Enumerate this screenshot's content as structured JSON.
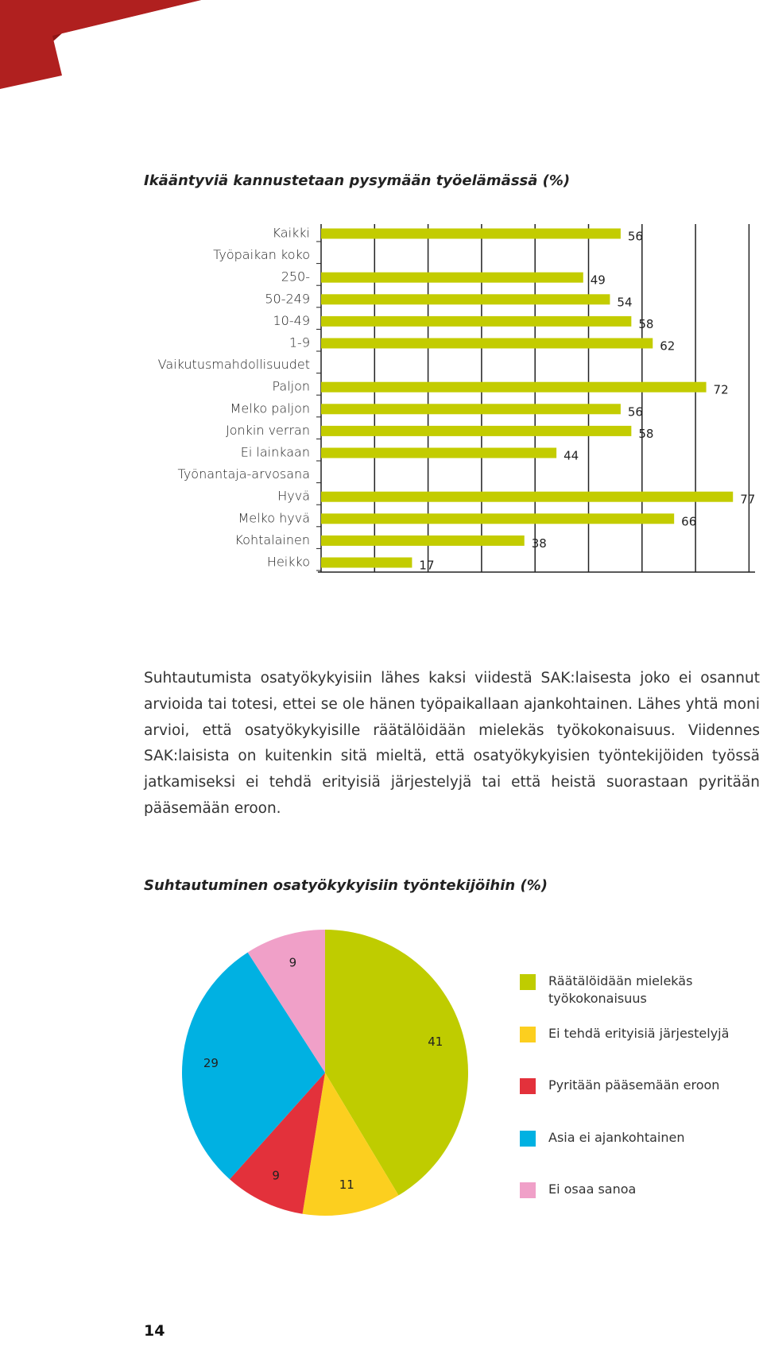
{
  "chart_data": [
    {
      "type": "bar",
      "orientation": "horizontal",
      "title": "Ikääntyviä kannustetaan pysymään työelämässä (%)",
      "categories": [
        "Kaikki",
        "Työpaikan koko",
        "250-",
        "50-249",
        "10-49",
        "1-9",
        "Vaikutusmahdollisuudet",
        "Paljon",
        "Melko paljon",
        "Jonkin verran",
        "Ei lainkaan",
        "Työnantaja-arvosana",
        "Hyvä",
        "Melko hyvä",
        "Kohtalainen",
        "Heikko"
      ],
      "values": [
        56,
        null,
        49,
        54,
        58,
        62,
        null,
        72,
        56,
        58,
        44,
        null,
        77,
        66,
        38,
        17
      ],
      "color": "#c3cc00",
      "xlim": [
        0,
        80
      ],
      "xticks": [
        0,
        10,
        20,
        30,
        40,
        50,
        60,
        70,
        80
      ],
      "grid": true
    },
    {
      "type": "pie",
      "title": "Suhtautuminen osatyökykyisiin työntekijöihin (%)",
      "categories": [
        "Räätälöidään mielekäs työkokonaisuus",
        "Ei tehdä erityisiä järjestelyjä",
        "Pyritään pääsemään eroon",
        "Asia ei ajankohtainen",
        "Ei osaa sanoa"
      ],
      "values": [
        41,
        11,
        9,
        29,
        9
      ],
      "colors": [
        "#bfcc00",
        "#fccf1f",
        "#e3313b",
        "#00b1e2",
        "#f0a0c8"
      ]
    }
  ],
  "body_text": "Suhtautumista osatyökykyisiin lähes kaksi viidestä SAK:laisesta joko ei osannut arvioida tai totesi, ettei se ole hänen työpaikallaan ajankohtainen. Lähes yhtä moni arvioi, että osatyökykyisille räätälöidään mielekäs työkokonaisuus. Viidennes SAK:laisista on kuitenkin sitä mieltä, että osatyökykyisien työntekijöiden työssä jatkamiseksi ei tehdä erityisiä järjestelyjä tai että heistä suorastaan pyritään pääsemään eroon.",
  "page_number": "14"
}
